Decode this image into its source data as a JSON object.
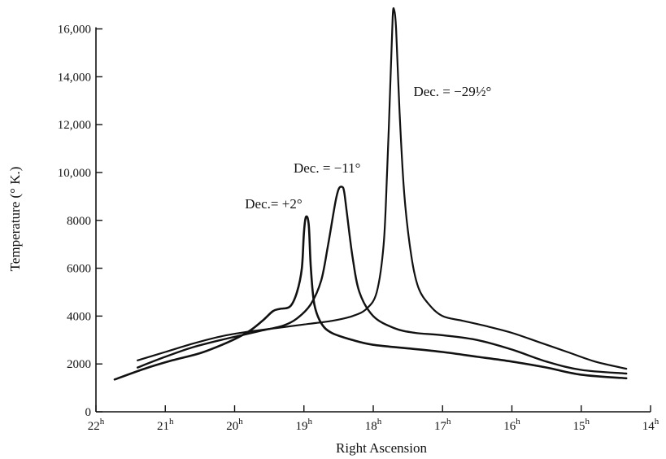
{
  "chart_data": {
    "type": "line",
    "title": "",
    "xlabel": "Right Ascension",
    "ylabel": "Temperature (° K.)",
    "xlim": [
      22,
      14
    ],
    "ylim": [
      0,
      16800
    ],
    "x_reversed": true,
    "x_ticks": [
      {
        "value": 22,
        "base": "22",
        "sup": "h"
      },
      {
        "value": 21,
        "base": "21",
        "sup": "h"
      },
      {
        "value": 20,
        "base": "20",
        "sup": "h"
      },
      {
        "value": 19,
        "base": "19",
        "sup": "h"
      },
      {
        "value": 18,
        "base": "18",
        "sup": "h"
      },
      {
        "value": 17,
        "base": "17",
        "sup": "h"
      },
      {
        "value": 16,
        "base": "16",
        "sup": "h"
      },
      {
        "value": 15,
        "base": "15",
        "sup": "h"
      },
      {
        "value": 14,
        "base": "14",
        "sup": "h"
      }
    ],
    "y_ticks": [
      {
        "value": 0,
        "label": "0"
      },
      {
        "value": 2000,
        "label": "2000"
      },
      {
        "value": 4000,
        "label": "4000"
      },
      {
        "value": 6000,
        "label": "6000"
      },
      {
        "value": 8000,
        "label": "8000"
      },
      {
        "value": 10000,
        "label": "10,000"
      },
      {
        "value": 12000,
        "label": "12,000"
      },
      {
        "value": 14000,
        "label": "14,000"
      },
      {
        "value": 16000,
        "label": "16,000"
      }
    ],
    "grid": false,
    "series": [
      {
        "name": "Dec. = +2°",
        "x": [
          21.73,
          21.3,
          20.9,
          20.5,
          20.1,
          19.8,
          19.6,
          19.45,
          19.35,
          19.2,
          19.1,
          19.03,
          19.0,
          18.97,
          18.93,
          18.9,
          18.85,
          18.75,
          18.6,
          18.3,
          18.0,
          17.5,
          17.0,
          16.5,
          16.0,
          15.5,
          15.0,
          14.35
        ],
        "y": [
          1350,
          1800,
          2150,
          2450,
          2900,
          3350,
          3800,
          4200,
          4300,
          4400,
          5000,
          6000,
          7500,
          8150,
          7800,
          6000,
          4500,
          3700,
          3300,
          3000,
          2800,
          2650,
          2500,
          2300,
          2100,
          1850,
          1550,
          1400
        ]
      },
      {
        "name": "Dec. = −11°",
        "x": [
          21.4,
          21.0,
          20.6,
          20.2,
          19.9,
          19.6,
          19.3,
          19.1,
          18.9,
          18.75,
          18.65,
          18.55,
          18.5,
          18.45,
          18.42,
          18.38,
          18.3,
          18.2,
          18.0,
          17.7,
          17.4,
          17.0,
          16.5,
          16.0,
          15.5,
          15.0,
          14.35
        ],
        "y": [
          1850,
          2300,
          2700,
          3000,
          3200,
          3400,
          3600,
          3900,
          4500,
          5500,
          7000,
          8700,
          9300,
          9400,
          9200,
          8300,
          6500,
          5000,
          4000,
          3500,
          3300,
          3200,
          3000,
          2600,
          2100,
          1750,
          1600
        ]
      },
      {
        "name": "Dec. = −29½°",
        "x": [
          21.4,
          21.0,
          20.6,
          20.2,
          19.8,
          19.4,
          19.0,
          18.6,
          18.3,
          18.1,
          17.95,
          17.85,
          17.8,
          17.75,
          17.72,
          17.7,
          17.67,
          17.62,
          17.55,
          17.45,
          17.35,
          17.2,
          17.0,
          16.7,
          16.4,
          16.0,
          15.6,
          15.2,
          14.8,
          14.35
        ],
        "y": [
          2150,
          2500,
          2850,
          3150,
          3350,
          3500,
          3650,
          3800,
          4000,
          4300,
          5000,
          7000,
          10000,
          14000,
          16500,
          16800,
          16000,
          12500,
          9000,
          6500,
          5200,
          4500,
          4000,
          3800,
          3600,
          3300,
          2900,
          2500,
          2100,
          1800
        ]
      }
    ],
    "annotations": [
      {
        "series": 0,
        "label": "Dec.= +2°",
        "x": 19.85,
        "y": 8500
      },
      {
        "series": 1,
        "label": "Dec. = −11°",
        "x": 19.15,
        "y": 10000
      },
      {
        "series": 2,
        "label": "Dec. = −29½°",
        "x": 17.42,
        "y": 13200
      }
    ]
  }
}
